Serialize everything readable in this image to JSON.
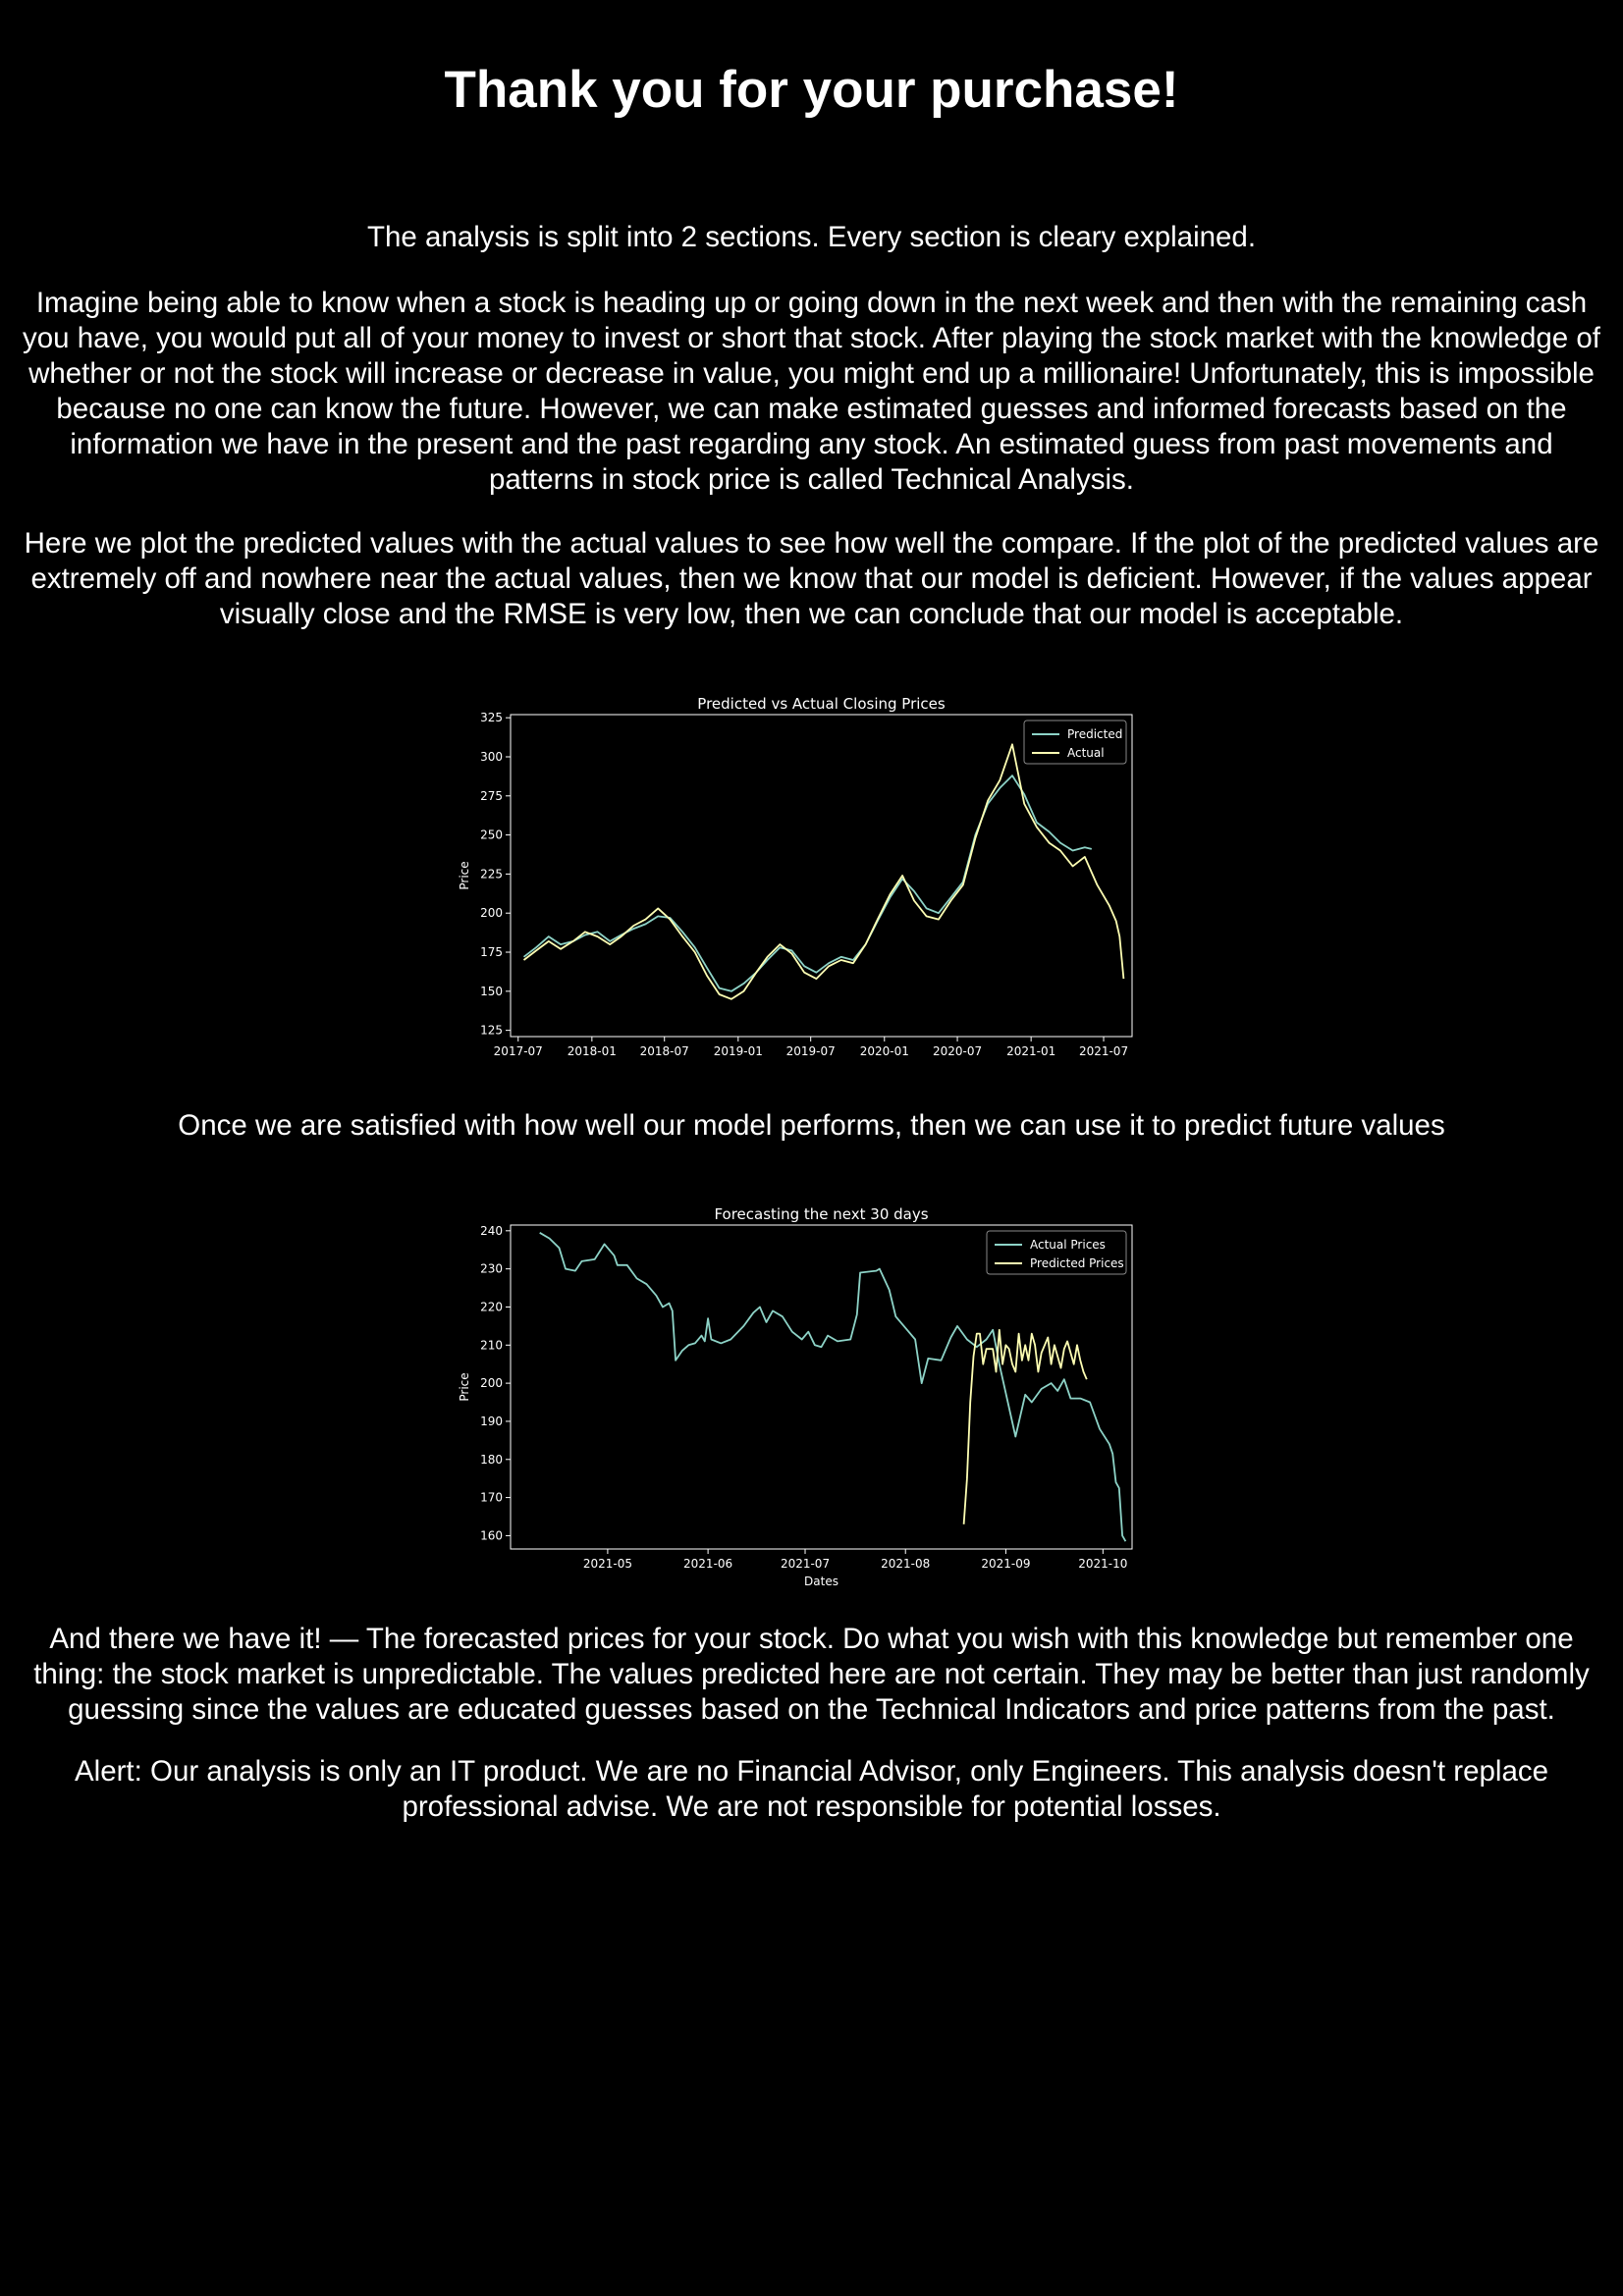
{
  "page": {
    "title": "Thank you for your purchase!",
    "intro": "The analysis is split into 2 sections. Every section is cleary explained.",
    "para1": "Imagine being able to know when a stock is heading up or going down in the next week and then with the remaining cash you have, you would put all of your money to invest or short that stock. After playing the stock market with the knowledge of whether or not the stock will increase or decrease in value, you might end up a millionaire! Unfortunately, this is impossible because no one can know the future. However, we can make estimated guesses and informed forecasts based on the information we have in the present and the past regarding any stock. An estimated guess from past movements and patterns in stock price is called Technical Analysis.",
    "para2": "Here we plot the predicted values with the actual values to see how well the compare. If the plot of the predicted values are extremely off and nowhere near the actual values, then we know that our model is deficient. However, if the values appear visually close and the RMSE is very low, then we can conclude that our model is acceptable.",
    "para3": "Once we are satisfied with how well our model performs, then we can use it to predict future values",
    "para4": "And there we have it! — The forecasted prices for your stock. Do what you wish with this knowledge but remember one thing: the stock market is unpredictable. The values predicted here are not certain. They may be better than just randomly guessing since the values are educated guesses based on the Technical Indicators and price patterns from the past.",
    "alert": "Alert: Our analysis is only an IT product. We are no Financial Advisor, only Engineers. This analysis doesn't replace professional advise. We are not responsible for potential losses."
  },
  "colors": {
    "background": "#000000",
    "text": "#ffffff",
    "series1": "#8dd3c7",
    "series2": "#feffb3"
  },
  "chart_data": [
    {
      "type": "line",
      "title": "Predicted vs Actual Closing Prices",
      "xlabel": "",
      "ylabel": "Price",
      "xlim": [
        "2017-06-12",
        "2021-09-10"
      ],
      "ylim": [
        121,
        327
      ],
      "x_ticks": [
        "2017-07",
        "2018-01",
        "2018-07",
        "2019-01",
        "2019-07",
        "2020-01",
        "2020-07",
        "2021-01",
        "2021-07"
      ],
      "y_ticks": [
        125,
        150,
        175,
        200,
        225,
        250,
        275,
        300,
        325
      ],
      "legend_position": "top-right",
      "grid": false,
      "series": [
        {
          "name": "Predicted",
          "color": "#8dd3c7",
          "points": [
            [
              "2017-07-15",
              172
            ],
            [
              "2017-08-15",
              178
            ],
            [
              "2017-09-15",
              185
            ],
            [
              "2017-10-15",
              180
            ],
            [
              "2017-11-15",
              182
            ],
            [
              "2017-12-15",
              186
            ],
            [
              "2018-01-15",
              188
            ],
            [
              "2018-02-15",
              182
            ],
            [
              "2018-03-15",
              186
            ],
            [
              "2018-04-15",
              190
            ],
            [
              "2018-05-15",
              193
            ],
            [
              "2018-06-15",
              198
            ],
            [
              "2018-07-15",
              197
            ],
            [
              "2018-08-15",
              188
            ],
            [
              "2018-09-15",
              178
            ],
            [
              "2018-10-15",
              165
            ],
            [
              "2018-11-15",
              152
            ],
            [
              "2018-12-15",
              150
            ],
            [
              "2019-01-15",
              155
            ],
            [
              "2019-02-15",
              162
            ],
            [
              "2019-03-15",
              170
            ],
            [
              "2019-04-15",
              178
            ],
            [
              "2019-05-15",
              176
            ],
            [
              "2019-06-15",
              166
            ],
            [
              "2019-07-15",
              162
            ],
            [
              "2019-08-15",
              168
            ],
            [
              "2019-09-15",
              172
            ],
            [
              "2019-10-15",
              170
            ],
            [
              "2019-11-15",
              180
            ],
            [
              "2019-12-15",
              195
            ],
            [
              "2020-01-15",
              210
            ],
            [
              "2020-02-15",
              222
            ],
            [
              "2020-03-15",
              214
            ],
            [
              "2020-04-15",
              203
            ],
            [
              "2020-05-15",
              200
            ],
            [
              "2020-06-15",
              210
            ],
            [
              "2020-07-15",
              220
            ],
            [
              "2020-08-15",
              250
            ],
            [
              "2020-09-15",
              270
            ],
            [
              "2020-10-15",
              280
            ],
            [
              "2020-11-15",
              288
            ],
            [
              "2020-12-15",
              276
            ],
            [
              "2021-01-15",
              258
            ],
            [
              "2021-02-15",
              252
            ],
            [
              "2021-03-15",
              245
            ],
            [
              "2021-04-15",
              240
            ],
            [
              "2021-05-15",
              242
            ],
            [
              "2021-06-01",
              241
            ]
          ]
        },
        {
          "name": "Actual",
          "color": "#feffb3",
          "points": [
            [
              "2017-07-15",
              170
            ],
            [
              "2017-08-15",
              176
            ],
            [
              "2017-09-15",
              182
            ],
            [
              "2017-10-15",
              177
            ],
            [
              "2017-11-15",
              182
            ],
            [
              "2017-12-15",
              188
            ],
            [
              "2018-01-15",
              185
            ],
            [
              "2018-02-15",
              180
            ],
            [
              "2018-03-15",
              185
            ],
            [
              "2018-04-15",
              192
            ],
            [
              "2018-05-15",
              196
            ],
            [
              "2018-06-15",
              203
            ],
            [
              "2018-07-15",
              196
            ],
            [
              "2018-08-15",
              185
            ],
            [
              "2018-09-15",
              175
            ],
            [
              "2018-10-15",
              160
            ],
            [
              "2018-11-15",
              148
            ],
            [
              "2018-12-15",
              145
            ],
            [
              "2019-01-15",
              150
            ],
            [
              "2019-02-15",
              162
            ],
            [
              "2019-03-15",
              172
            ],
            [
              "2019-04-15",
              180
            ],
            [
              "2019-05-15",
              174
            ],
            [
              "2019-06-15",
              162
            ],
            [
              "2019-07-15",
              158
            ],
            [
              "2019-08-15",
              166
            ],
            [
              "2019-09-15",
              170
            ],
            [
              "2019-10-15",
              168
            ],
            [
              "2019-11-15",
              180
            ],
            [
              "2019-12-15",
              196
            ],
            [
              "2020-01-15",
              212
            ],
            [
              "2020-02-15",
              224
            ],
            [
              "2020-03-15",
              208
            ],
            [
              "2020-04-15",
              198
            ],
            [
              "2020-05-15",
              196
            ],
            [
              "2020-06-15",
              208
            ],
            [
              "2020-07-15",
              218
            ],
            [
              "2020-08-15",
              248
            ],
            [
              "2020-09-15",
              272
            ],
            [
              "2020-10-15",
              285
            ],
            [
              "2020-11-15",
              308
            ],
            [
              "2020-12-15",
              270
            ],
            [
              "2021-01-15",
              255
            ],
            [
              "2021-02-15",
              245
            ],
            [
              "2021-03-15",
              240
            ],
            [
              "2021-04-15",
              230
            ],
            [
              "2021-05-15",
              236
            ],
            [
              "2021-06-15",
              218
            ],
            [
              "2021-07-15",
              205
            ],
            [
              "2021-08-01",
              195
            ],
            [
              "2021-08-10",
              185
            ],
            [
              "2021-08-20",
              158
            ]
          ]
        }
      ]
    },
    {
      "type": "line",
      "title": "Forecasting the next 30 days",
      "xlabel": "Dates",
      "ylabel": "Price",
      "xlim": [
        "2021-04-01",
        "2021-10-10"
      ],
      "ylim": [
        156.5,
        241.5
      ],
      "x_ticks": [
        "2021-05",
        "2021-06",
        "2021-07",
        "2021-08",
        "2021-09",
        "2021-10"
      ],
      "y_ticks": [
        160,
        170,
        180,
        190,
        200,
        210,
        220,
        230,
        240
      ],
      "legend_position": "top-right",
      "grid": false,
      "series": [
        {
          "name": "Actual Prices",
          "color": "#8dd3c7",
          "points": [
            [
              "2021-04-10",
              239.5
            ],
            [
              "2021-04-13",
              238
            ],
            [
              "2021-04-16",
              235.5
            ],
            [
              "2021-04-18",
              230
            ],
            [
              "2021-04-21",
              229.5
            ],
            [
              "2021-04-23",
              232
            ],
            [
              "2021-04-27",
              232.5
            ],
            [
              "2021-04-30",
              236.5
            ],
            [
              "2021-05-03",
              233.5
            ],
            [
              "2021-05-04",
              231
            ],
            [
              "2021-05-07",
              231
            ],
            [
              "2021-05-10",
              227.5
            ],
            [
              "2021-05-13",
              226
            ],
            [
              "2021-05-16",
              223
            ],
            [
              "2021-05-18",
              220
            ],
            [
              "2021-05-20",
              221
            ],
            [
              "2021-05-21",
              219
            ],
            [
              "2021-05-22",
              206
            ],
            [
              "2021-05-24",
              208.5
            ],
            [
              "2021-05-26",
              210
            ],
            [
              "2021-05-28",
              210.5
            ],
            [
              "2021-05-30",
              212.5
            ],
            [
              "2021-05-31",
              211
            ],
            [
              "2021-06-01",
              217
            ],
            [
              "2021-06-02",
              211.5
            ],
            [
              "2021-06-05",
              210.5
            ],
            [
              "2021-06-08",
              211.5
            ],
            [
              "2021-06-12",
              215
            ],
            [
              "2021-06-15",
              218.5
            ],
            [
              "2021-06-17",
              220
            ],
            [
              "2021-06-19",
              216
            ],
            [
              "2021-06-21",
              219
            ],
            [
              "2021-06-24",
              217.5
            ],
            [
              "2021-06-27",
              213.5
            ],
            [
              "2021-06-30",
              211.5
            ],
            [
              "2021-07-02",
              213.5
            ],
            [
              "2021-07-04",
              210
            ],
            [
              "2021-07-06",
              209.5
            ],
            [
              "2021-07-08",
              212.5
            ],
            [
              "2021-07-11",
              211
            ],
            [
              "2021-07-15",
              211.5
            ],
            [
              "2021-07-17",
              218
            ],
            [
              "2021-07-18",
              229
            ],
            [
              "2021-07-23",
              229.5
            ],
            [
              "2021-07-24",
              230
            ],
            [
              "2021-07-27",
              224.5
            ],
            [
              "2021-07-29",
              217.5
            ],
            [
              "2021-08-01",
              214.5
            ],
            [
              "2021-08-04",
              211.5
            ],
            [
              "2021-08-06",
              200
            ],
            [
              "2021-08-08",
              206.5
            ],
            [
              "2021-08-12",
              206
            ],
            [
              "2021-08-15",
              212
            ],
            [
              "2021-08-17",
              215
            ],
            [
              "2021-08-20",
              211.5
            ],
            [
              "2021-08-23",
              209.5
            ],
            [
              "2021-08-26",
              211.5
            ],
            [
              "2021-08-28",
              214
            ],
            [
              "2021-08-30",
              205
            ],
            [
              "2021-09-04",
              186
            ],
            [
              "2021-09-07",
              197
            ],
            [
              "2021-09-09",
              195
            ],
            [
              "2021-09-12",
              198.5
            ],
            [
              "2021-09-15",
              200
            ],
            [
              "2021-09-17",
              198
            ],
            [
              "2021-09-19",
              201
            ],
            [
              "2021-09-21",
              196
            ],
            [
              "2021-09-24",
              196
            ],
            [
              "2021-09-27",
              195
            ],
            [
              "2021-09-30",
              188
            ],
            [
              "2021-10-03",
              184
            ],
            [
              "2021-10-04",
              181.5
            ],
            [
              "2021-10-05",
              174
            ],
            [
              "2021-10-06",
              172.5
            ],
            [
              "2021-10-07",
              160
            ],
            [
              "2021-10-08",
              158.5
            ]
          ]
        },
        {
          "name": "Predicted Prices",
          "color": "#feffb3",
          "points": [
            [
              "2021-08-19",
              163
            ],
            [
              "2021-08-20",
              175
            ],
            [
              "2021-08-21",
              195
            ],
            [
              "2021-08-22",
              207
            ],
            [
              "2021-08-23",
              213
            ],
            [
              "2021-08-24",
              213
            ],
            [
              "2021-08-25",
              205
            ],
            [
              "2021-08-26",
              209
            ],
            [
              "2021-08-27",
              209
            ],
            [
              "2021-08-28",
              209
            ],
            [
              "2021-08-29",
              203
            ],
            [
              "2021-08-30",
              214
            ],
            [
              "2021-08-31",
              205
            ],
            [
              "2021-09-01",
              210
            ],
            [
              "2021-09-02",
              209
            ],
            [
              "2021-09-03",
              205
            ],
            [
              "2021-09-04",
              203
            ],
            [
              "2021-09-05",
              213
            ],
            [
              "2021-09-06",
              206
            ],
            [
              "2021-09-07",
              210
            ],
            [
              "2021-09-08",
              206
            ],
            [
              "2021-09-09",
              213
            ],
            [
              "2021-09-10",
              210
            ],
            [
              "2021-09-11",
              203
            ],
            [
              "2021-09-12",
              208
            ],
            [
              "2021-09-13",
              210
            ],
            [
              "2021-09-14",
              212
            ],
            [
              "2021-09-15",
              205
            ],
            [
              "2021-09-16",
              210
            ],
            [
              "2021-09-17",
              207
            ],
            [
              "2021-09-18",
              204
            ],
            [
              "2021-09-19",
              209
            ],
            [
              "2021-09-20",
              211
            ],
            [
              "2021-09-21",
              208
            ],
            [
              "2021-09-22",
              205
            ],
            [
              "2021-09-23",
              210
            ],
            [
              "2021-09-24",
              206
            ],
            [
              "2021-09-25",
              203
            ],
            [
              "2021-09-26",
              201
            ]
          ]
        }
      ]
    }
  ]
}
